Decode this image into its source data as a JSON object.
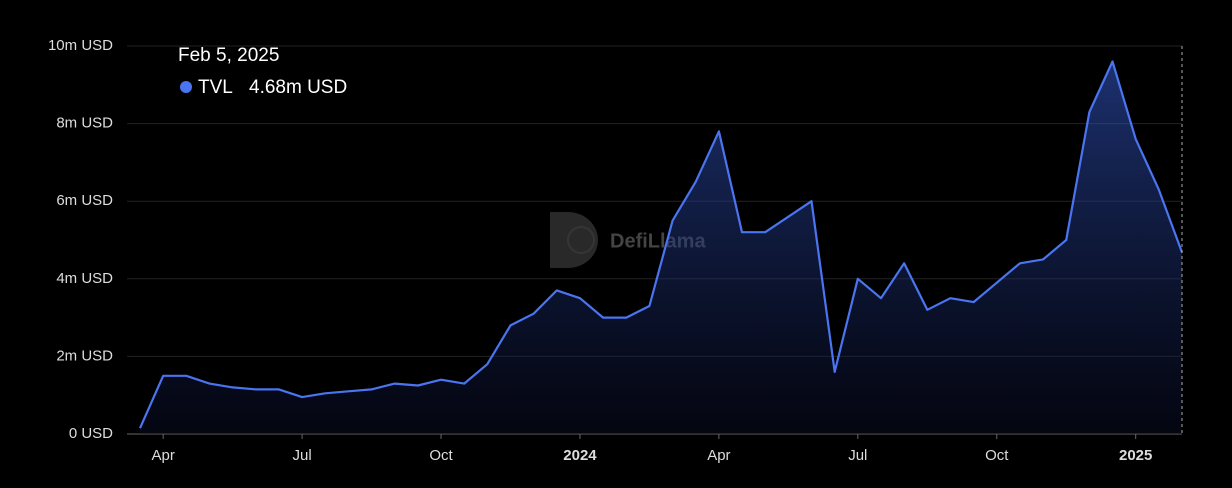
{
  "chart_data": {
    "type": "area",
    "watermark": "DefiLlama",
    "tooltip": {
      "title": "Feb 5, 2025",
      "label": "4.68m USD"
    },
    "categories": [
      null,
      "Apr",
      null,
      null,
      null,
      null,
      null,
      "Jul",
      null,
      null,
      null,
      null,
      null,
      "Oct",
      null,
      null,
      null,
      null,
      null,
      "2024",
      null,
      null,
      null,
      null,
      null,
      "Apr",
      null,
      null,
      null,
      null,
      null,
      "Jul",
      null,
      null,
      null,
      null,
      null,
      "Oct",
      null,
      null,
      null,
      null,
      null,
      "2025",
      null,
      null
    ],
    "series": [
      {
        "name": "TVL",
        "color": "#4b74f0",
        "values": [
          0.15,
          1.5,
          1.5,
          1.3,
          1.2,
          1.15,
          1.15,
          0.95,
          1.05,
          1.1,
          1.15,
          1.3,
          1.25,
          1.4,
          1.3,
          1.8,
          2.8,
          3.1,
          3.7,
          3.5,
          3.0,
          3.0,
          3.3,
          5.5,
          6.5,
          7.8,
          5.2,
          5.2,
          5.6,
          6.0,
          1.6,
          4.0,
          3.5,
          4.4,
          3.2,
          3.5,
          3.4,
          3.9,
          4.4,
          4.5,
          5.0,
          8.3,
          9.6,
          7.6,
          6.3,
          4.68
        ]
      }
    ],
    "ylim": [
      0,
      10
    ],
    "yticks": [
      {
        "value": 0,
        "label": "0 USD"
      },
      {
        "value": 2,
        "label": "2m USD"
      },
      {
        "value": 4,
        "label": "4m USD"
      },
      {
        "value": 6,
        "label": "6m USD"
      },
      {
        "value": 8,
        "label": "8m USD"
      },
      {
        "value": 10,
        "label": "10m USD"
      }
    ],
    "grid": true
  }
}
